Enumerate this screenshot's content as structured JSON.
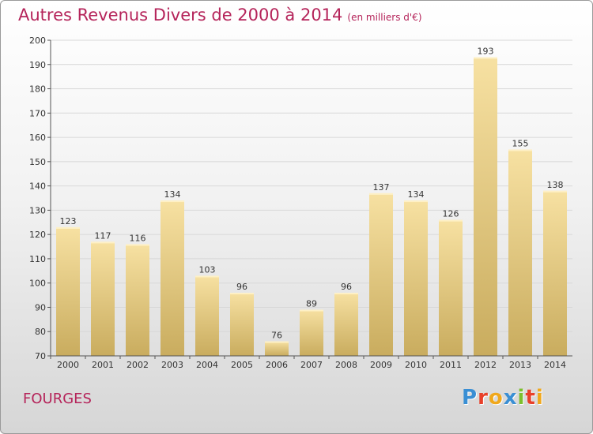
{
  "header": {
    "title": "Autres Revenus Divers de 2000 à 2014",
    "subtitle": "(en milliers d'€)"
  },
  "footer": {
    "city": "FOURGES",
    "logo": [
      "P",
      "r",
      "o",
      "x",
      "i",
      "t",
      "i"
    ],
    "logo_colors": [
      "#3a8fd4",
      "#e8402a",
      "#f0a81c",
      "#3a8fd4",
      "#7cbf2c",
      "#e8402a",
      "#f0a81c"
    ]
  },
  "chart_data": {
    "type": "bar",
    "title": "Autres Revenus Divers de 2000 à 2014",
    "subtitle": "(en milliers d'€)",
    "categories": [
      "2000",
      "2001",
      "2002",
      "2003",
      "2004",
      "2005",
      "2006",
      "2007",
      "2008",
      "2009",
      "2010",
      "2011",
      "2012",
      "2013",
      "2014"
    ],
    "values": [
      123,
      117,
      116,
      134,
      103,
      96,
      76,
      89,
      96,
      137,
      134,
      126,
      193,
      155,
      138
    ],
    "ylim": [
      70,
      200
    ],
    "yticks": [
      70,
      80,
      90,
      100,
      110,
      120,
      130,
      140,
      150,
      160,
      170,
      180,
      190,
      200
    ],
    "grid": true,
    "bar_color": "#e9cd82"
  }
}
